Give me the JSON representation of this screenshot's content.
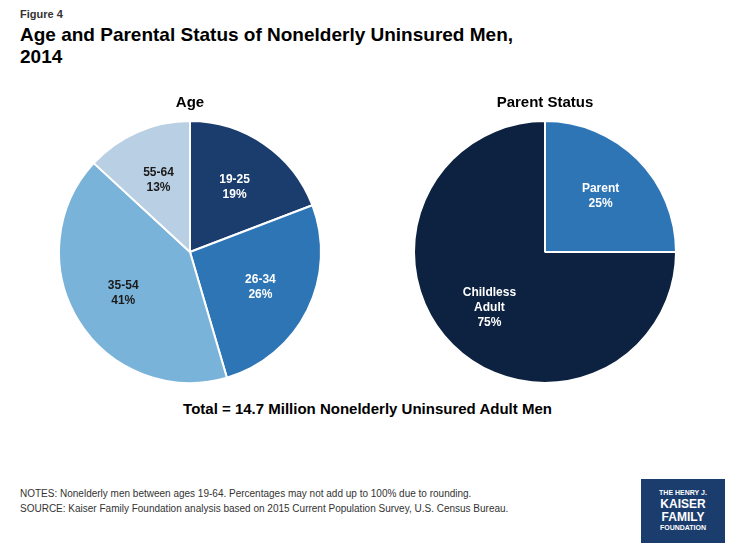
{
  "title": "Age and Parental Status of Nonelderly Uninsured Men,\n2014",
  "annotations": [
    "Figure 4",
    "Total = 14.7 Million Nonelderly Uninsured Adult Men",
    "NOTES: Nonelderly men between ages 19-64. Percentages may not add up to 100% due to rounding.",
    "SOURCE: Kaiser Family Foundation analysis based on 2015 Current Population Survey, U.S. Census Bureau.",
    "THE HENRY J.",
    "KAISER",
    "FAMILY",
    "FOUNDATION"
  ],
  "chart_data": [
    {
      "type": "pie",
      "title": "Age",
      "categories": [
        "19-25",
        "26-34",
        "35-54",
        "55-64"
      ],
      "values": [
        19,
        26,
        41,
        13
      ],
      "value_labels": [
        "19%",
        "26%",
        "41%",
        "13%"
      ],
      "colors": [
        "#1b3d6e",
        "#2e75b6",
        "#7ab3d9",
        "#b8cfe4"
      ],
      "data_labels": true
    },
    {
      "type": "pie",
      "title": "Parent Status",
      "categories": [
        "Parent",
        "Childless\nAdult"
      ],
      "values": [
        25,
        75
      ],
      "value_labels": [
        "25%",
        "75%"
      ],
      "colors": [
        "#2e75b6",
        "#0d2240"
      ],
      "data_labels": true
    }
  ]
}
